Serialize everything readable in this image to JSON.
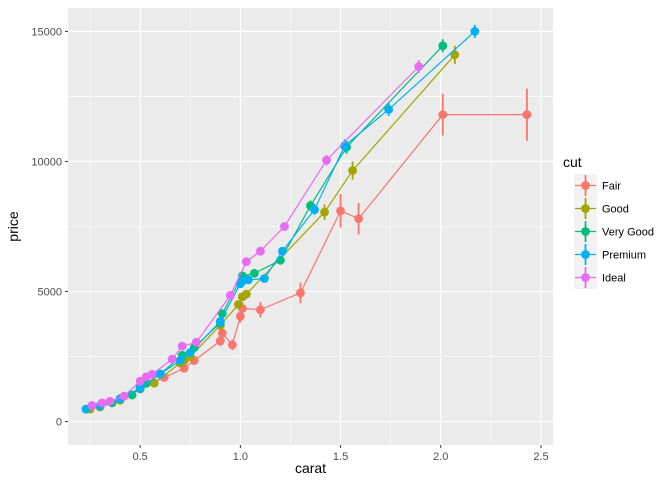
{
  "chart_data": {
    "type": "line",
    "xlabel": "carat",
    "ylabel": "price",
    "xlim": [
      0.14,
      2.56
    ],
    "ylim": [
      -900,
      15900
    ],
    "x_ticks": [
      0.5,
      1.0,
      1.5,
      2.0,
      2.5
    ],
    "x_tick_labels": [
      "0.5",
      "1.0",
      "1.5",
      "2.0",
      "2.5"
    ],
    "y_ticks": [
      0,
      5000,
      10000,
      15000
    ],
    "y_tick_labels": [
      "0",
      "5000",
      "10000",
      "15000"
    ],
    "grid": true,
    "legend": {
      "title": "cut",
      "placement": "right"
    },
    "series": [
      {
        "name": "Fair",
        "color": "#F8766D",
        "points": [
          [
            0.25,
            500,
            60
          ],
          [
            0.3,
            580,
            60
          ],
          [
            0.4,
            850,
            80
          ],
          [
            0.5,
            1300,
            100
          ],
          [
            0.62,
            1700,
            120
          ],
          [
            0.72,
            2050,
            120
          ],
          [
            0.77,
            2350,
            150
          ],
          [
            0.9,
            3100,
            200
          ],
          [
            0.91,
            3400,
            200
          ],
          [
            0.96,
            2950,
            200
          ],
          [
            1.0,
            4050,
            250
          ],
          [
            1.01,
            4350,
            250
          ],
          [
            1.1,
            4300,
            300
          ],
          [
            1.3,
            4950,
            400
          ],
          [
            1.5,
            8100,
            650
          ],
          [
            1.59,
            7800,
            600
          ],
          [
            2.01,
            11800,
            800
          ],
          [
            2.43,
            11800,
            1000
          ]
        ]
      },
      {
        "name": "Good",
        "color": "#A3A500",
        "points": [
          [
            0.25,
            480,
            50
          ],
          [
            0.3,
            560,
            50
          ],
          [
            0.4,
            820,
            50
          ],
          [
            0.5,
            1250,
            60
          ],
          [
            0.57,
            1480,
            60
          ],
          [
            0.7,
            2250,
            80
          ],
          [
            0.72,
            2350,
            80
          ],
          [
            0.75,
            2500,
            80
          ],
          [
            0.9,
            3700,
            100
          ],
          [
            0.99,
            4500,
            120
          ],
          [
            1.01,
            4800,
            120
          ],
          [
            1.03,
            4900,
            120
          ],
          [
            1.42,
            8050,
            300
          ],
          [
            1.56,
            9650,
            350
          ],
          [
            2.07,
            14100,
            350
          ]
        ]
      },
      {
        "name": "Very Good",
        "color": "#00BF7D",
        "points": [
          [
            0.23,
            480,
            30
          ],
          [
            0.3,
            610,
            30
          ],
          [
            0.36,
            720,
            30
          ],
          [
            0.4,
            880,
            30
          ],
          [
            0.46,
            1020,
            40
          ],
          [
            0.5,
            1350,
            40
          ],
          [
            0.53,
            1470,
            40
          ],
          [
            0.6,
            1830,
            40
          ],
          [
            0.71,
            2550,
            50
          ],
          [
            0.77,
            2850,
            50
          ],
          [
            0.9,
            3800,
            60
          ],
          [
            0.91,
            4150,
            60
          ],
          [
            1.01,
            5600,
            80
          ],
          [
            1.07,
            5700,
            80
          ],
          [
            1.2,
            6200,
            100
          ],
          [
            1.35,
            8300,
            200
          ],
          [
            1.53,
            10550,
            250
          ],
          [
            2.01,
            14450,
            250
          ]
        ]
      },
      {
        "name": "Premium",
        "color": "#00B0F6",
        "points": [
          [
            0.23,
            480,
            30
          ],
          [
            0.3,
            610,
            30
          ],
          [
            0.4,
            870,
            30
          ],
          [
            0.5,
            1270,
            40
          ],
          [
            0.6,
            1830,
            40
          ],
          [
            0.7,
            2350,
            50
          ],
          [
            0.75,
            2650,
            50
          ],
          [
            0.9,
            3850,
            60
          ],
          [
            1.0,
            5300,
            80
          ],
          [
            1.01,
            5400,
            80
          ],
          [
            1.04,
            5450,
            80
          ],
          [
            1.12,
            5500,
            100
          ],
          [
            1.21,
            6550,
            120
          ],
          [
            1.37,
            8150,
            200
          ],
          [
            1.52,
            10600,
            250
          ],
          [
            1.74,
            12000,
            250
          ],
          [
            2.17,
            15000,
            250
          ]
        ]
      },
      {
        "name": "Ideal",
        "color": "#E76BF3",
        "points": [
          [
            0.26,
            620,
            30
          ],
          [
            0.31,
            720,
            30
          ],
          [
            0.35,
            780,
            30
          ],
          [
            0.42,
            980,
            30
          ],
          [
            0.5,
            1550,
            40
          ],
          [
            0.53,
            1720,
            40
          ],
          [
            0.56,
            1820,
            40
          ],
          [
            0.66,
            2400,
            50
          ],
          [
            0.71,
            2900,
            50
          ],
          [
            0.78,
            3050,
            50
          ],
          [
            0.95,
            4850,
            60
          ],
          [
            1.03,
            6150,
            80
          ],
          [
            1.1,
            6550,
            100
          ],
          [
            1.22,
            7500,
            120
          ],
          [
            1.43,
            10050,
            200
          ],
          [
            1.89,
            13650,
            250
          ]
        ]
      }
    ]
  }
}
